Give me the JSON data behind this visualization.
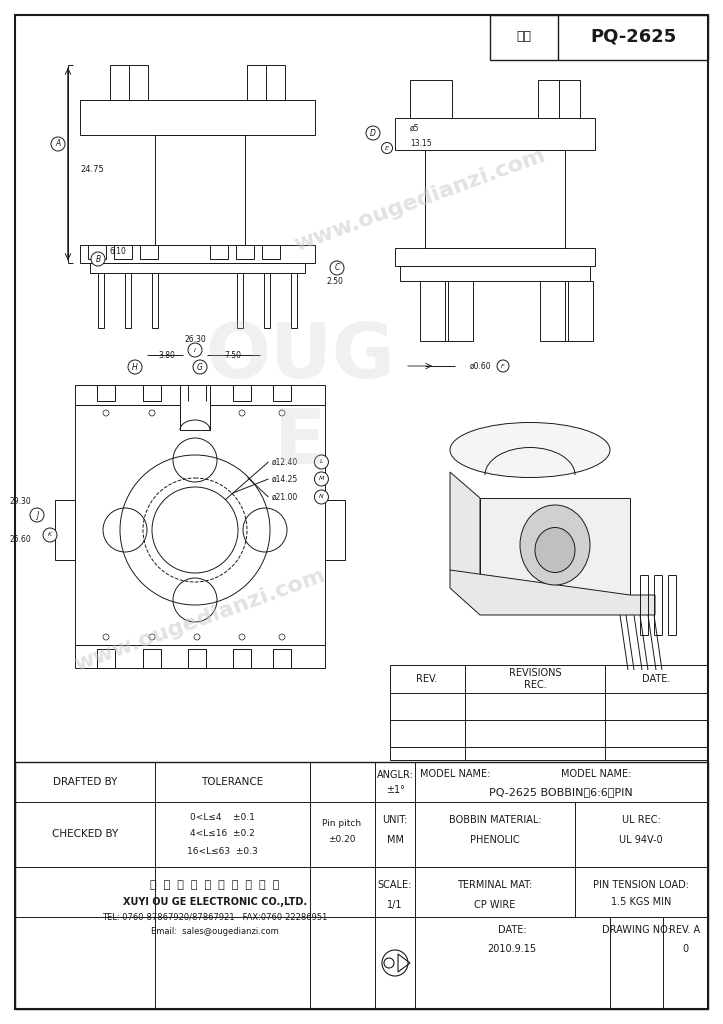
{
  "title_block": {
    "model_label": "型号",
    "model_value": "PQ-2625",
    "drafted_by": "DRAFTED BY",
    "tolerance": "TOLERANCE",
    "anglr_label": "ANGLR:",
    "anglr_value": "±1°",
    "model_name_label": "MODEL NAME:",
    "model_name_value": "PQ-2625 BOBBIN（6:6）PIN",
    "checked_by": "CHECKED BY",
    "tol1": "0<L≤4    ±0.1",
    "tol2": "4<L≤16  ±0.2",
    "tol3": "16<L≤63  ±0.3",
    "pin_pitch_label": "Pin pitch",
    "pin_pitch_value": "±0.20",
    "unit_label": "UNIT:",
    "unit_value": "MM",
    "bobbin_mat_label": "BOBBIN MATERIAL:",
    "bobbin_mat_value": "PHENOLIC",
    "ul_rec_label": "UL REC:",
    "ul_rec_value": "UL 94V-0",
    "company_cn": "肓  胎  欧  歌  电  子  有  限  公  司",
    "company_en": "XUYI OU GE ELECTRONIC CO.,LTD.",
    "tel": "TEL: 0760-87867920/87867921   FAX:0760-22286951",
    "email": "Email:  sales@ougedianzi.com",
    "scale_label": "SCALE:",
    "scale_value": "1/1",
    "terminal_mat_label": "TERMINAL MAT:",
    "terminal_mat_value": "CP WIRE",
    "pin_tension_label": "PIN TENSION LOAD:",
    "pin_tension_value": "1.5 KGS MIN",
    "date_label": "DATE:",
    "date_value": "2010.9.15",
    "drawing_no_label": "DRAWING NO:",
    "rev_a_label": "REV. A",
    "rev_a_value": "0",
    "rev_label": "REV.",
    "revisions_label": "REVISIONS\nREC.",
    "date_col_label": "DATE."
  },
  "watermark1": "www.ougedianzi.com",
  "watermark2": "www.ougedianzi.com",
  "bg_color": "#ffffff",
  "line_color": "#1a1a1a",
  "wm_color": "#c8c8c8"
}
